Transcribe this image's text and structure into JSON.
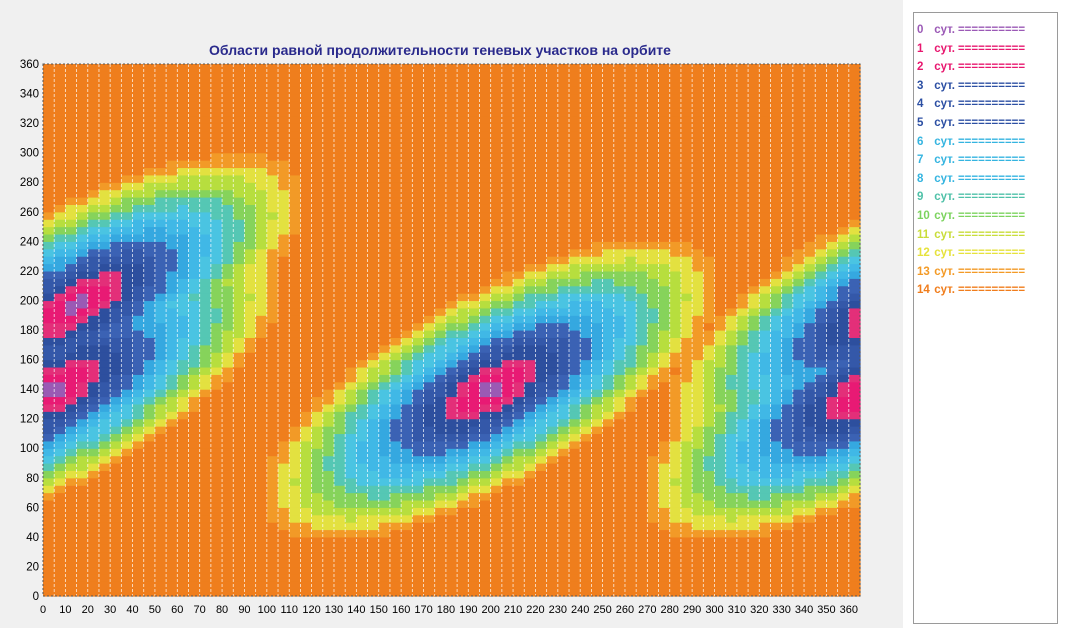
{
  "chart_data": {
    "type": "heatmap",
    "title": "Области равной продолжительности теневых участков на орбите",
    "xlabel": "",
    "ylabel": "",
    "xlim": [
      0,
      365
    ],
    "ylim": [
      0,
      360
    ],
    "x_ticks": [
      0,
      10,
      20,
      30,
      40,
      50,
      60,
      70,
      80,
      90,
      100,
      110,
      120,
      130,
      140,
      150,
      160,
      170,
      180,
      190,
      200,
      210,
      220,
      230,
      240,
      250,
      260,
      270,
      280,
      290,
      300,
      310,
      320,
      330,
      340,
      350,
      360
    ],
    "y_ticks": [
      0,
      20,
      40,
      60,
      80,
      100,
      120,
      140,
      160,
      180,
      200,
      220,
      240,
      260,
      280,
      300,
      320,
      340,
      360
    ],
    "value_model": {
      "description_of_bands": "diagonal bands of constant shadow duration (days) shifting with x",
      "centers": [
        [
          15,
          197
        ],
        [
          200,
          140
        ],
        [
          370,
          140
        ]
      ]
    },
    "levels": [
      {
        "label": "0",
        "unit": "сут.",
        "marker": "==========",
        "color": "#9b59b6"
      },
      {
        "label": "1",
        "unit": "сут.",
        "marker": "==========",
        "color": "#e8176f"
      },
      {
        "label": "2",
        "unit": "сут.",
        "marker": "==========",
        "color": "#e8176f"
      },
      {
        "label": "3",
        "unit": "сут.",
        "marker": "==========",
        "color": "#2c4fa3"
      },
      {
        "label": "4",
        "unit": "сут.",
        "marker": "==========",
        "color": "#2c4fa3"
      },
      {
        "label": "5",
        "unit": "сут.",
        "marker": "==========",
        "color": "#2c4fa3"
      },
      {
        "label": "6",
        "unit": "сут.",
        "marker": "==========",
        "color": "#34b4e0"
      },
      {
        "label": "7",
        "unit": "сут.",
        "marker": "==========",
        "color": "#34b4e0"
      },
      {
        "label": "8",
        "unit": "сут.",
        "marker": "==========",
        "color": "#34b4e0"
      },
      {
        "label": "9",
        "unit": "сут.",
        "marker": "==========",
        "color": "#4fc1a8"
      },
      {
        "label": "10",
        "unit": "сут.",
        "marker": "==========",
        "color": "#7cd35e"
      },
      {
        "label": "11",
        "unit": "сут.",
        "marker": "==========",
        "color": "#c9dd3a"
      },
      {
        "label": "12",
        "unit": "сут.",
        "marker": "==========",
        "color": "#e6e23c"
      },
      {
        "label": "13",
        "unit": "сут.",
        "marker": "==========",
        "color": "#f39a26"
      },
      {
        "label": "14",
        "unit": "сут.",
        "marker": "==========",
        "color": "#f07d1c"
      }
    ]
  }
}
